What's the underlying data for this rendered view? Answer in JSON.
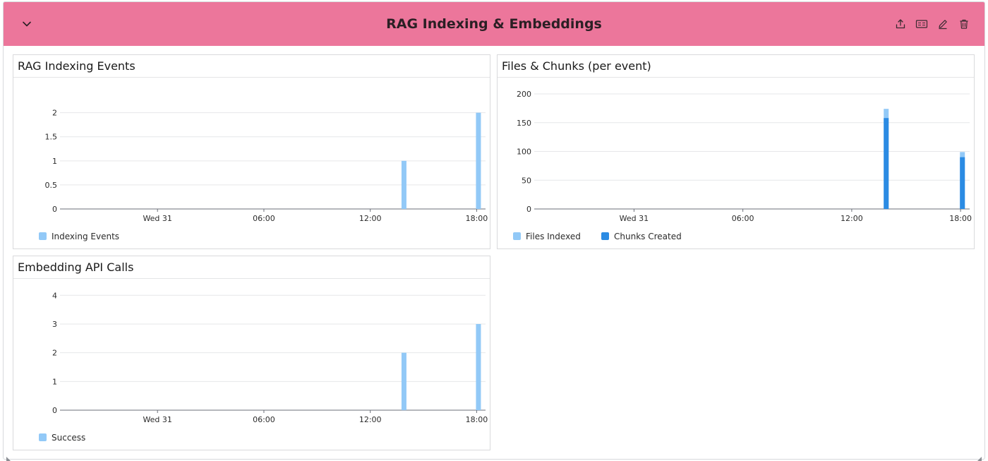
{
  "group": {
    "title": "RAG Indexing & Embeddings",
    "header_color": "#ec769b",
    "actions": [
      {
        "name": "share-icon"
      },
      {
        "name": "toggle-icon"
      },
      {
        "name": "edit-icon"
      },
      {
        "name": "delete-icon"
      }
    ]
  },
  "colors": {
    "bar_light": "#92c9f7",
    "bar_dark": "#2b8be3",
    "grid": "#e6e7e9",
    "axis": "#6b6f78"
  },
  "panels": [
    {
      "id": "rag-indexing-events",
      "title": "RAG Indexing Events"
    },
    {
      "id": "files-chunks",
      "title": "Files & Chunks (per event)"
    },
    {
      "id": "embedding-api-calls",
      "title": "Embedding API Calls"
    }
  ],
  "chart_data": [
    {
      "type": "bar",
      "title": "RAG Indexing Events",
      "x_ticks": [
        "Wed 31",
        "06:00",
        "12:00",
        "18:00"
      ],
      "x_tick_hours": [
        0,
        6,
        12,
        18
      ],
      "xlim_hours": [
        -5.5,
        18.5
      ],
      "y_ticks": [
        "0",
        "0.5",
        "1",
        "1.5",
        "2"
      ],
      "ylim": [
        0,
        2.2
      ],
      "series": [
        {
          "name": "Indexing Events",
          "color": "#92c9f7",
          "x_hours": [
            13.9,
            18.1
          ],
          "values": [
            1,
            2
          ]
        }
      ],
      "legend_position": "bottom-left"
    },
    {
      "type": "bar",
      "title": "Files & Chunks (per event)",
      "x_ticks": [
        "Wed 31",
        "06:00",
        "12:00",
        "18:00"
      ],
      "x_tick_hours": [
        0,
        6,
        12,
        18
      ],
      "xlim_hours": [
        -5.5,
        18.5
      ],
      "y_ticks": [
        "0",
        "50",
        "100",
        "150",
        "200"
      ],
      "ylim": [
        0,
        200
      ],
      "series": [
        {
          "name": "Files Indexed",
          "color": "#92c9f7",
          "x_hours": [
            13.9,
            18.1
          ],
          "values": [
            174,
            99
          ]
        },
        {
          "name": "Chunks Created",
          "color": "#2b8be3",
          "x_hours": [
            13.9,
            18.1
          ],
          "values": [
            158,
            90
          ]
        }
      ],
      "legend_position": "bottom-left"
    },
    {
      "type": "bar",
      "title": "Embedding API Calls",
      "x_ticks": [
        "Wed 31",
        "06:00",
        "12:00",
        "18:00"
      ],
      "x_tick_hours": [
        0,
        6,
        12,
        18
      ],
      "xlim_hours": [
        -5.5,
        18.5
      ],
      "y_ticks": [
        "0",
        "1",
        "2",
        "3",
        "4"
      ],
      "ylim": [
        0,
        4.4
      ],
      "series": [
        {
          "name": "Success",
          "color": "#92c9f7",
          "x_hours": [
            13.9,
            18.1
          ],
          "values": [
            2,
            3
          ]
        }
      ],
      "legend_position": "bottom-left"
    }
  ]
}
